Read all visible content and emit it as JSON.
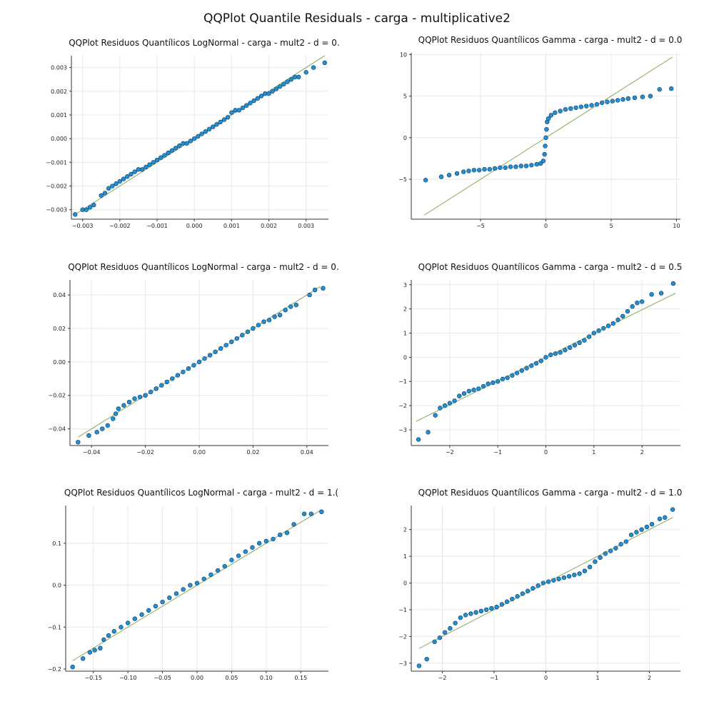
{
  "figure": {
    "title": "QQPlot Quantile Residuals - carga - multiplicative2"
  },
  "colors": {
    "points": "#1f8fd6",
    "point_edge": "#123a5a",
    "reference_line": "#8db26a",
    "grid": "#e8e8e8"
  },
  "chart_data": [
    {
      "type": "scatter",
      "title": "QQPlot Residuos Quantílicos LogNormal - carga - mult2 - d = 0.",
      "xlim": [
        -0.0033,
        0.0036
      ],
      "ylim": [
        -0.0034,
        0.0035
      ],
      "xticks": [
        -0.003,
        -0.002,
        -0.001,
        0.0,
        0.001,
        0.002,
        0.003
      ],
      "xtick_labels": [
        "−0.003",
        "−0.002",
        "−0.001",
        "0.000",
        "0.001",
        "0.002",
        "0.003"
      ],
      "yticks": [
        -0.003,
        -0.002,
        -0.001,
        0.0,
        0.001,
        0.002,
        0.003
      ],
      "ytick_labels": [
        "−0.003",
        "−0.002",
        "−0.001",
        "0.000",
        "0.001",
        "0.002",
        "0.003"
      ],
      "grid": true,
      "reference_line": {
        "x": [
          -0.0032,
          0.0035
        ],
        "y": [
          -0.0032,
          0.0035
        ]
      },
      "points": {
        "x": [
          -0.0032,
          -0.003,
          -0.0029,
          -0.0028,
          -0.0027,
          -0.0025,
          -0.0024,
          -0.0023,
          -0.0022,
          -0.0021,
          -0.002,
          -0.0019,
          -0.0018,
          -0.0017,
          -0.0016,
          -0.0015,
          -0.0014,
          -0.0013,
          -0.0012,
          -0.0011,
          -0.001,
          -0.0009,
          -0.0008,
          -0.0007,
          -0.0006,
          -0.0005,
          -0.0004,
          -0.0003,
          -0.0002,
          -0.0001,
          0.0,
          0.0001,
          0.0002,
          0.0003,
          0.0004,
          0.0005,
          0.0006,
          0.0007,
          0.0008,
          0.0009,
          0.001,
          0.0011,
          0.0012,
          0.0013,
          0.0014,
          0.0015,
          0.0016,
          0.0017,
          0.0018,
          0.0019,
          0.002,
          0.0021,
          0.0022,
          0.0023,
          0.0024,
          0.0025,
          0.0026,
          0.0027,
          0.0028,
          0.003,
          0.0032,
          0.0035
        ],
        "y": [
          -0.0032,
          -0.003,
          -0.003,
          -0.0029,
          -0.0028,
          -0.0024,
          -0.0023,
          -0.0021,
          -0.002,
          -0.0019,
          -0.0018,
          -0.0017,
          -0.0016,
          -0.0015,
          -0.0014,
          -0.0013,
          -0.0013,
          -0.0012,
          -0.0011,
          -0.001,
          -0.0009,
          -0.0008,
          -0.0007,
          -0.0006,
          -0.0005,
          -0.0004,
          -0.0003,
          -0.0002,
          -0.0002,
          -0.0001,
          0.0,
          0.0001,
          0.0002,
          0.0003,
          0.0004,
          0.0005,
          0.0006,
          0.0007,
          0.0008,
          0.0009,
          0.0011,
          0.0012,
          0.0012,
          0.0013,
          0.0014,
          0.0015,
          0.0016,
          0.0017,
          0.0018,
          0.0019,
          0.0019,
          0.002,
          0.0021,
          0.0022,
          0.0023,
          0.0024,
          0.0025,
          0.0026,
          0.0026,
          0.0028,
          0.003,
          0.0032
        ]
      }
    },
    {
      "type": "scatter",
      "title": "QQPlot Residuos Quantílicos Gamma - carga - mult2 - d = 0.0",
      "xlim": [
        -10.3,
        10.3
      ],
      "ylim": [
        -9.8,
        10.2
      ],
      "xticks": [
        -5,
        0,
        5,
        10
      ],
      "xtick_labels": [
        "−5",
        "0",
        "5",
        "10"
      ],
      "yticks": [
        -5,
        0,
        5,
        10
      ],
      "ytick_labels": [
        "−5",
        "0",
        "5",
        "10"
      ],
      "grid": true,
      "reference_line": {
        "x": [
          -9.3,
          9.7
        ],
        "y": [
          -9.3,
          9.7
        ]
      },
      "points": {
        "x": [
          -9.2,
          -8.0,
          -7.4,
          -6.8,
          -6.3,
          -5.9,
          -5.5,
          -5.1,
          -4.7,
          -4.3,
          -3.9,
          -3.5,
          -3.1,
          -2.7,
          -2.3,
          -1.9,
          -1.5,
          -1.1,
          -0.7,
          -0.4,
          -0.2,
          -0.1,
          -0.05,
          0.0,
          0.05,
          0.1,
          0.2,
          0.4,
          0.7,
          1.1,
          1.5,
          1.9,
          2.3,
          2.7,
          3.1,
          3.5,
          3.9,
          4.3,
          4.7,
          5.1,
          5.5,
          5.9,
          6.3,
          6.8,
          7.4,
          8.0,
          8.7,
          9.6
        ],
        "y": [
          -5.1,
          -4.7,
          -4.5,
          -4.3,
          -4.1,
          -4.0,
          -3.9,
          -3.9,
          -3.8,
          -3.8,
          -3.7,
          -3.6,
          -3.6,
          -3.5,
          -3.5,
          -3.4,
          -3.4,
          -3.3,
          -3.2,
          -3.1,
          -2.8,
          -2.0,
          -1.0,
          0.0,
          1.0,
          1.9,
          2.3,
          2.7,
          3.0,
          3.2,
          3.4,
          3.5,
          3.6,
          3.7,
          3.8,
          3.9,
          4.0,
          4.2,
          4.3,
          4.4,
          4.5,
          4.6,
          4.7,
          4.8,
          4.9,
          5.0,
          5.8,
          5.9
        ]
      }
    },
    {
      "type": "scatter",
      "title": "QQPlot Residuos Quantílicos LogNormal - carga - mult2 - d = 0.",
      "xlim": [
        -0.048,
        0.048
      ],
      "ylim": [
        -0.05,
        0.049
      ],
      "xticks": [
        -0.04,
        -0.02,
        0.0,
        0.02,
        0.04
      ],
      "xtick_labels": [
        "−0.04",
        "−0.02",
        "0.00",
        "0.02",
        "0.04"
      ],
      "yticks": [
        -0.04,
        -0.02,
        0.0,
        0.02,
        0.04
      ],
      "ytick_labels": [
        "−0.04",
        "−0.02",
        "0.00",
        "0.02",
        "0.04"
      ],
      "grid": true,
      "reference_line": {
        "x": [
          -0.045,
          0.045
        ],
        "y": [
          -0.045,
          0.045
        ]
      },
      "points": {
        "x": [
          -0.045,
          -0.041,
          -0.038,
          -0.036,
          -0.034,
          -0.032,
          -0.031,
          -0.03,
          -0.028,
          -0.026,
          -0.024,
          -0.022,
          -0.02,
          -0.018,
          -0.016,
          -0.014,
          -0.012,
          -0.01,
          -0.008,
          -0.006,
          -0.004,
          -0.002,
          0.0,
          0.002,
          0.004,
          0.006,
          0.008,
          0.01,
          0.012,
          0.014,
          0.016,
          0.018,
          0.02,
          0.022,
          0.024,
          0.026,
          0.028,
          0.03,
          0.032,
          0.034,
          0.036,
          0.041,
          0.043,
          0.046
        ],
        "y": [
          -0.048,
          -0.044,
          -0.042,
          -0.04,
          -0.038,
          -0.034,
          -0.031,
          -0.028,
          -0.026,
          -0.024,
          -0.022,
          -0.021,
          -0.02,
          -0.018,
          -0.016,
          -0.014,
          -0.012,
          -0.01,
          -0.008,
          -0.006,
          -0.004,
          -0.002,
          0.0,
          0.002,
          0.004,
          0.006,
          0.008,
          0.01,
          0.012,
          0.014,
          0.016,
          0.018,
          0.02,
          0.022,
          0.024,
          0.025,
          0.027,
          0.028,
          0.031,
          0.033,
          0.034,
          0.04,
          0.043,
          0.044
        ]
      }
    },
    {
      "type": "scatter",
      "title": "QQPlot Residuos Quantílicos Gamma - carga - mult2 - d = 0.5",
      "xlim": [
        -2.8,
        2.8
      ],
      "ylim": [
        -3.65,
        3.2
      ],
      "xticks": [
        -2,
        -1,
        0,
        1,
        2
      ],
      "xtick_labels": [
        "−2",
        "−1",
        "0",
        "1",
        "2"
      ],
      "yticks": [
        -3,
        -2,
        -1,
        0,
        1,
        2,
        3
      ],
      "ytick_labels": [
        "−3",
        "−2",
        "−1",
        "0",
        "1",
        "2",
        "3"
      ],
      "grid": true,
      "reference_line": {
        "x": [
          -2.7,
          2.7
        ],
        "y": [
          -2.65,
          2.65
        ]
      },
      "points": {
        "x": [
          -2.65,
          -2.45,
          -2.3,
          -2.2,
          -2.1,
          -2.0,
          -1.9,
          -1.8,
          -1.7,
          -1.6,
          -1.5,
          -1.4,
          -1.3,
          -1.2,
          -1.1,
          -1.0,
          -0.9,
          -0.8,
          -0.7,
          -0.6,
          -0.5,
          -0.4,
          -0.3,
          -0.2,
          -0.1,
          0.0,
          0.1,
          0.2,
          0.3,
          0.4,
          0.5,
          0.6,
          0.7,
          0.8,
          0.9,
          1.0,
          1.1,
          1.2,
          1.3,
          1.4,
          1.5,
          1.6,
          1.7,
          1.8,
          1.9,
          2.0,
          2.2,
          2.4,
          2.65
        ],
        "y": [
          -3.4,
          -3.1,
          -2.4,
          -2.1,
          -2.0,
          -1.9,
          -1.8,
          -1.6,
          -1.5,
          -1.4,
          -1.35,
          -1.3,
          -1.2,
          -1.1,
          -1.05,
          -1.0,
          -0.9,
          -0.85,
          -0.75,
          -0.65,
          -0.55,
          -0.45,
          -0.35,
          -0.25,
          -0.15,
          0.0,
          0.1,
          0.15,
          0.2,
          0.3,
          0.4,
          0.5,
          0.6,
          0.7,
          0.85,
          1.0,
          1.1,
          1.2,
          1.3,
          1.4,
          1.55,
          1.7,
          1.9,
          2.1,
          2.25,
          2.3,
          2.6,
          2.65,
          3.05
        ]
      }
    },
    {
      "type": "scatter",
      "title": "QQPlot Residuos Quantílicos LogNormal - carga - mult2 - d = 1.(",
      "xlim": [
        -0.19,
        0.19
      ],
      "ylim": [
        -0.205,
        0.19
      ],
      "xticks": [
        -0.15,
        -0.1,
        -0.05,
        0.0,
        0.05,
        0.1,
        0.15
      ],
      "xtick_labels": [
        "−0.15",
        "−0.10",
        "−0.05",
        "0.00",
        "0.05",
        "0.10",
        "0.15"
      ],
      "yticks": [
        -0.2,
        -0.1,
        0.0,
        0.1
      ],
      "ytick_labels": [
        "−0.2",
        "−0.1",
        "0.0",
        "0.1"
      ],
      "grid": true,
      "reference_line": {
        "x": [
          -0.18,
          0.18
        ],
        "y": [
          -0.18,
          0.18
        ]
      },
      "points": {
        "x": [
          -0.18,
          -0.165,
          -0.155,
          -0.148,
          -0.14,
          -0.135,
          -0.128,
          -0.12,
          -0.11,
          -0.1,
          -0.09,
          -0.08,
          -0.07,
          -0.06,
          -0.05,
          -0.04,
          -0.03,
          -0.02,
          -0.01,
          0.0,
          0.01,
          0.02,
          0.03,
          0.04,
          0.05,
          0.06,
          0.07,
          0.08,
          0.09,
          0.1,
          0.11,
          0.12,
          0.13,
          0.14,
          0.155,
          0.165,
          0.18
        ],
        "y": [
          -0.195,
          -0.175,
          -0.16,
          -0.155,
          -0.15,
          -0.13,
          -0.12,
          -0.11,
          -0.1,
          -0.09,
          -0.08,
          -0.07,
          -0.06,
          -0.05,
          -0.04,
          -0.03,
          -0.02,
          -0.01,
          0.0,
          0.005,
          0.015,
          0.025,
          0.035,
          0.045,
          0.06,
          0.07,
          0.08,
          0.09,
          0.1,
          0.105,
          0.11,
          0.12,
          0.125,
          0.145,
          0.17,
          0.17,
          0.175
        ]
      }
    },
    {
      "type": "scatter",
      "title": "QQPlot Residuos Quantílicos Gamma - carga - mult2 - d = 1.0",
      "xlim": [
        -2.6,
        2.6
      ],
      "ylim": [
        -3.3,
        2.9
      ],
      "xticks": [
        -2,
        -1,
        0,
        1,
        2
      ],
      "xtick_labels": [
        "−2",
        "−1",
        "0",
        "1",
        "2"
      ],
      "yticks": [
        -3,
        -2,
        -1,
        0,
        1,
        2
      ],
      "ytick_labels": [
        "−3",
        "−2",
        "−1",
        "0",
        "1",
        "2"
      ],
      "grid": true,
      "reference_line": {
        "x": [
          -2.45,
          2.45
        ],
        "y": [
          -2.45,
          2.45
        ]
      },
      "points": {
        "x": [
          -2.45,
          -2.3,
          -2.15,
          -2.05,
          -1.95,
          -1.85,
          -1.75,
          -1.65,
          -1.55,
          -1.45,
          -1.35,
          -1.25,
          -1.15,
          -1.05,
          -0.95,
          -0.85,
          -0.75,
          -0.65,
          -0.55,
          -0.45,
          -0.35,
          -0.25,
          -0.15,
          -0.05,
          0.05,
          0.15,
          0.25,
          0.35,
          0.45,
          0.55,
          0.65,
          0.75,
          0.85,
          0.95,
          1.05,
          1.15,
          1.25,
          1.35,
          1.45,
          1.55,
          1.65,
          1.75,
          1.85,
          1.95,
          2.05,
          2.2,
          2.3,
          2.45
        ],
        "y": [
          -3.1,
          -2.85,
          -2.2,
          -2.05,
          -1.85,
          -1.7,
          -1.5,
          -1.3,
          -1.2,
          -1.15,
          -1.1,
          -1.05,
          -1.0,
          -0.95,
          -0.9,
          -0.8,
          -0.7,
          -0.6,
          -0.5,
          -0.4,
          -0.3,
          -0.2,
          -0.1,
          0.0,
          0.05,
          0.1,
          0.15,
          0.2,
          0.25,
          0.3,
          0.35,
          0.45,
          0.6,
          0.8,
          0.95,
          1.1,
          1.2,
          1.3,
          1.45,
          1.55,
          1.8,
          1.9,
          2.0,
          2.1,
          2.2,
          2.4,
          2.45,
          2.75
        ]
      }
    }
  ]
}
